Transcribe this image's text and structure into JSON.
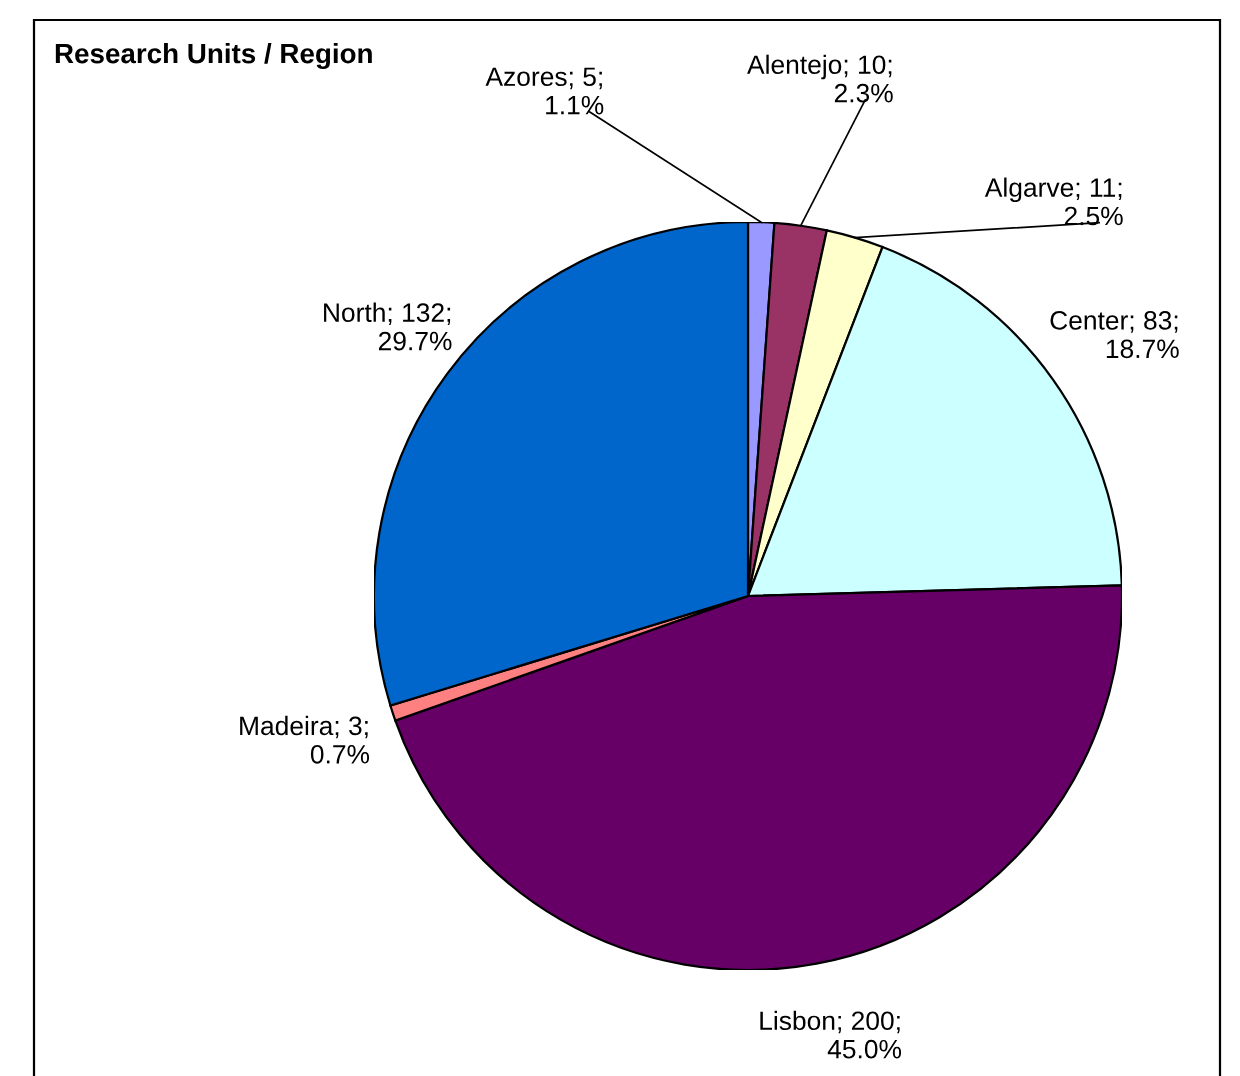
{
  "chart_data": {
    "type": "pie",
    "title": "Research Units / Region",
    "categories": [
      "Azores",
      "Alentejo",
      "Algarve",
      "Center",
      "Lisbon",
      "Madeira",
      "North"
    ],
    "values": [
      5,
      10,
      11,
      83,
      200,
      3,
      132
    ],
    "value_labels": [
      "; 5;\n1.1%",
      "; 10;\n2.3%",
      "; 11;\n2.5%",
      "; 83;\n18.7%",
      "; 200;\n45.0%",
      "; 3;\n0.7%",
      "; 132;\n29.7%"
    ],
    "colors": [
      "#9999ff",
      "#993366",
      "#ffffcc",
      "#ccffff",
      "#660066",
      "#ff8080",
      "#0066cc"
    ],
    "legend": false
  }
}
